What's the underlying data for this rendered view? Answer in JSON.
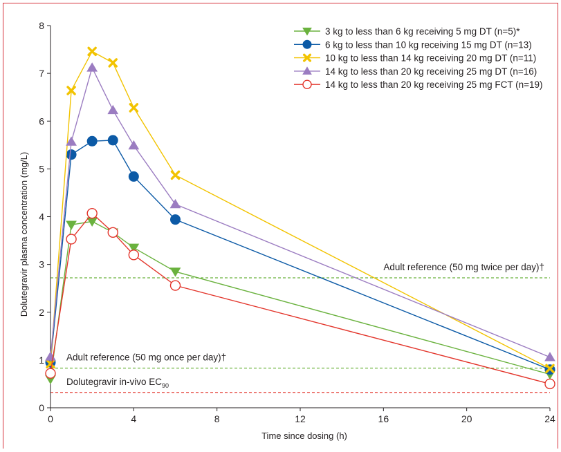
{
  "chart_data": {
    "type": "line",
    "xlabel": "Time since dosing (h)",
    "ylabel": "Dolutegravir plasma concentration (mg/L)",
    "xlim": [
      0,
      24
    ],
    "ylim": [
      0,
      8
    ],
    "xticks": [
      0,
      4,
      8,
      12,
      16,
      20,
      24
    ],
    "yticks": [
      0,
      1,
      2,
      3,
      4,
      5,
      6,
      7,
      8
    ],
    "grid": false,
    "legend_position": "top-right",
    "series": [
      {
        "name": "3 kg to less than 6 kg receiving 5 mg DT (n=5)*",
        "marker": "triangle-down",
        "color": "#6ab23e",
        "x": [
          0,
          1,
          2,
          3,
          4,
          6,
          24
        ],
        "y": [
          0.6,
          3.83,
          3.9,
          3.67,
          3.35,
          2.85,
          0.7
        ]
      },
      {
        "name": "6 kg to less than 10 kg receiving 15 mg DT (n=13)",
        "marker": "circle-filled",
        "color": "#0c5aa6",
        "x": [
          0,
          1,
          2,
          3,
          4,
          6,
          24
        ],
        "y": [
          0.95,
          5.3,
          5.58,
          5.6,
          4.84,
          3.94,
          0.8
        ]
      },
      {
        "name": "10 kg to less than 14 kg receiving 20 mg DT (n=11)",
        "marker": "x",
        "color": "#f2c300",
        "x": [
          0,
          1,
          2,
          3,
          4,
          6,
          24
        ],
        "y": [
          0.92,
          6.64,
          7.46,
          7.22,
          6.28,
          4.87,
          0.82
        ]
      },
      {
        "name": "14 kg to less than 20 kg receiving 25 mg DT (n=16)",
        "marker": "triangle-up",
        "color": "#9b7cc1",
        "x": [
          0,
          1,
          2,
          3,
          4,
          6,
          24
        ],
        "y": [
          1.07,
          5.57,
          7.12,
          6.23,
          5.49,
          4.26,
          1.06
        ]
      },
      {
        "name": "14 kg to less than 20 kg receiving 25 mg FCT (n=19)",
        "marker": "circle-open",
        "color": "#e3352b",
        "x": [
          0,
          1,
          2,
          3,
          4,
          6,
          24
        ],
        "y": [
          0.72,
          3.53,
          4.07,
          3.67,
          3.2,
          2.56,
          0.5
        ]
      }
    ],
    "reference_lines": [
      {
        "label": "Adult reference (50 mg twice per day)†",
        "y": 2.72,
        "color": "#6ab23e",
        "style": "dashed"
      },
      {
        "label": "Adult reference (50 mg once per day)†",
        "y": 0.83,
        "color": "#6ab23e",
        "style": "dashed"
      },
      {
        "label": "Dolutegravir in-vivo EC",
        "label_subscript": "90",
        "y": 0.32,
        "color": "#e3352b",
        "style": "dashed"
      }
    ]
  }
}
